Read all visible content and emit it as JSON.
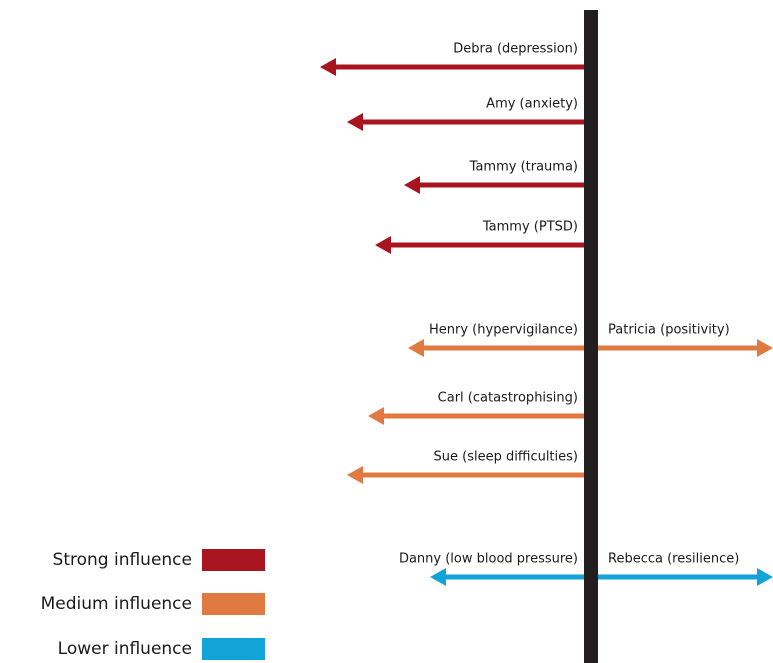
{
  "levels": [
    {
      "name": "Strong influence",
      "color": "#a8141f"
    },
    {
      "name": "Medium influence",
      "color": "#e07a40"
    },
    {
      "name": "Lower influence",
      "color": "#12a3d8"
    }
  ],
  "arrows": [
    {
      "label": "Debra (depression)",
      "side": "left",
      "level": "Strong influence"
    },
    {
      "label": "Amy (anxiety)",
      "side": "left",
      "level": "Strong influence"
    },
    {
      "label": "Tammy (trauma)",
      "side": "left",
      "level": "Strong influence"
    },
    {
      "label": "Tammy (PTSD)",
      "side": "left",
      "level": "Strong influence"
    },
    {
      "label": "Henry (hypervigilance)",
      "side": "left",
      "level": "Medium influence"
    },
    {
      "label": "Patricia (positivity)",
      "side": "right",
      "level": "Medium influence"
    },
    {
      "label": "Carl (catastrophising)",
      "side": "left",
      "level": "Medium influence"
    },
    {
      "label": "Sue (sleep difficulties)",
      "side": "left",
      "level": "Medium influence"
    },
    {
      "label": "Danny (low blood pressure)",
      "side": "left",
      "level": "Lower influence"
    },
    {
      "label": "Rebecca (resilience)",
      "side": "right",
      "level": "Lower influence"
    }
  ]
}
